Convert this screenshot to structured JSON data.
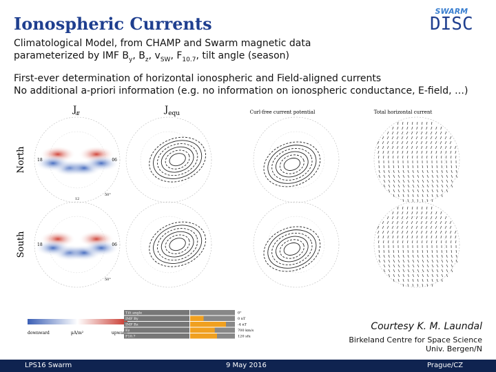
{
  "header": {
    "title": "Ionospheric Currents",
    "logo_top": "SWARM",
    "logo_bottom": "DISC"
  },
  "subtitle": {
    "line1": "Climatological Model, from CHAMP and Swarm magnetic data",
    "line2": [
      {
        "text": "parameterized by IMF B"
      },
      {
        "text": "y",
        "sub": true
      },
      {
        "text": ", B"
      },
      {
        "text": "z",
        "sub": true
      },
      {
        "text": ", v"
      },
      {
        "text": "SW",
        "sub": true
      },
      {
        "text": ", F"
      },
      {
        "text": "10.7",
        "sub": true
      },
      {
        "text": ", tilt angle (season)"
      }
    ]
  },
  "points": [
    "First-ever determination of horizontal ionospheric and Field-aligned currents",
    "No additional a-priori information (e.g. no information on ionospheric conductance, E-field, …)"
  ],
  "figure": {
    "columns": [
      {
        "main": "J",
        "sub": "r"
      },
      {
        "main": "J",
        "sub": "equ"
      },
      {
        "main": "Curl-free current potential"
      },
      {
        "main": "Total horizontal current"
      }
    ],
    "rows": [
      "North",
      "South"
    ],
    "clock": {
      "top": "12",
      "left": "18",
      "right": "06",
      "lat": "50°"
    },
    "colorbar": {
      "left": "downward",
      "unit": "µA/m²",
      "right": "upward"
    },
    "inputs": [
      {
        "name": "Tilt angle",
        "setting": "0°"
      },
      {
        "name": "IMF By",
        "setting": "0 nT"
      },
      {
        "name": "IMF Bz",
        "setting": "-4 nT"
      },
      {
        "name": "Ez",
        "setting": "700 km/s"
      },
      {
        "name": "F10.7",
        "setting": "120 sfu"
      }
    ]
  },
  "credit": {
    "name": "Courtesy K. M. Laundal",
    "line1": "Birkeland Centre for Space Science",
    "line2": "Univ. Bergen/N"
  },
  "footer": {
    "left": "LPS16 Swarm",
    "center": "9 May 2016",
    "right": "Prague/CZ"
  }
}
